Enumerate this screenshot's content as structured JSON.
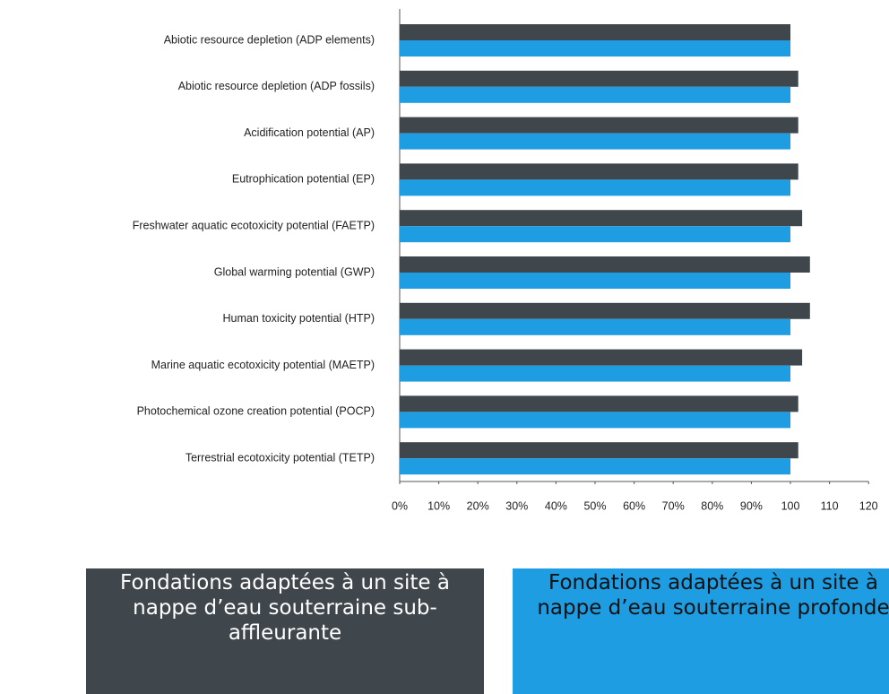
{
  "chart_data": {
    "type": "hbar",
    "categories": [
      "Abiotic resource depletion (ADP elements)",
      "Abiotic resource depletion (ADP fossils)",
      "Acidification potential (AP)",
      "Eutrophication potential (EP)",
      "Freshwater aquatic ecotoxicity potential (FAETP)",
      "Global warming potential (GWP)",
      "Human toxicity potential (HTP)",
      "Marine aquatic ecotoxicity potential (MAETP)",
      "Photochemical ozone creation potential (POCP)",
      "Terrestrial ecotoxicity potential (TETP)"
    ],
    "series": [
      {
        "name": "Fondations adaptées à un site à nappe d’eau souterraine sub-affleurante",
        "color": "#3f474c",
        "values": [
          100,
          102,
          102,
          102,
          103,
          105,
          105,
          103,
          102,
          102
        ]
      },
      {
        "name": "Fondations adaptées à un site à nappe d’eau souterraine profonde",
        "color": "#1e9de2",
        "values": [
          100,
          100,
          100,
          100,
          100,
          100,
          100,
          100,
          100,
          100
        ]
      }
    ],
    "xlim": [
      0,
      120
    ],
    "xticks": [
      {
        "value": 0,
        "label": "0%"
      },
      {
        "value": 10,
        "label": "10%"
      },
      {
        "value": 20,
        "label": "20%"
      },
      {
        "value": 30,
        "label": "30%"
      },
      {
        "value": 40,
        "label": "40%"
      },
      {
        "value": 50,
        "label": "50%"
      },
      {
        "value": 60,
        "label": "60%"
      },
      {
        "value": 70,
        "label": "70%"
      },
      {
        "value": 80,
        "label": "80%"
      },
      {
        "value": 90,
        "label": "90%"
      },
      100,
      110,
      120
    ]
  }
}
